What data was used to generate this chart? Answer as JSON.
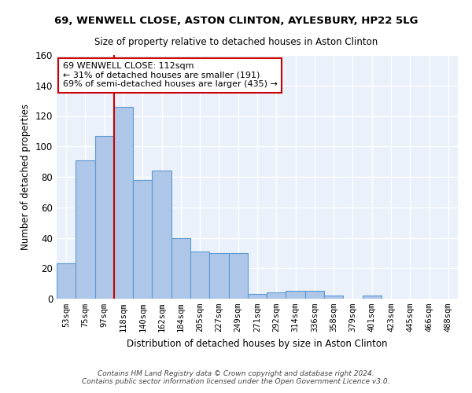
{
  "title1": "69, WENWELL CLOSE, ASTON CLINTON, AYLESBURY, HP22 5LG",
  "title2": "Size of property relative to detached houses in Aston Clinton",
  "xlabel": "Distribution of detached houses by size in Aston Clinton",
  "ylabel": "Number of detached properties",
  "bin_labels": [
    "53sqm",
    "75sqm",
    "97sqm",
    "118sqm",
    "140sqm",
    "162sqm",
    "184sqm",
    "205sqm",
    "227sqm",
    "249sqm",
    "271sqm",
    "292sqm",
    "314sqm",
    "336sqm",
    "358sqm",
    "379sqm",
    "401sqm",
    "423sqm",
    "445sqm",
    "466sqm",
    "488sqm"
  ],
  "bar_values": [
    23,
    91,
    107,
    126,
    78,
    84,
    40,
    31,
    30,
    30,
    3,
    4,
    5,
    5,
    2,
    0,
    2,
    0,
    0,
    0,
    0
  ],
  "bar_color": "#aec6e8",
  "bar_edge_color": "#5b9bd5",
  "bg_color": "#eaf1fb",
  "grid_color": "#ffffff",
  "vline_x_index": 2.5,
  "vline_color": "#cc0000",
  "annotation_text": "69 WENWELL CLOSE: 112sqm\n← 31% of detached houses are smaller (191)\n69% of semi-detached houses are larger (435) →",
  "annotation_box_color": "#ffffff",
  "annotation_box_edge": "#cc0000",
  "footer_text": "Contains HM Land Registry data © Crown copyright and database right 2024.\nContains public sector information licensed under the Open Government Licence v3.0.",
  "ylim": [
    0,
    160
  ],
  "yticks": [
    0,
    20,
    40,
    60,
    80,
    100,
    120,
    140,
    160
  ]
}
